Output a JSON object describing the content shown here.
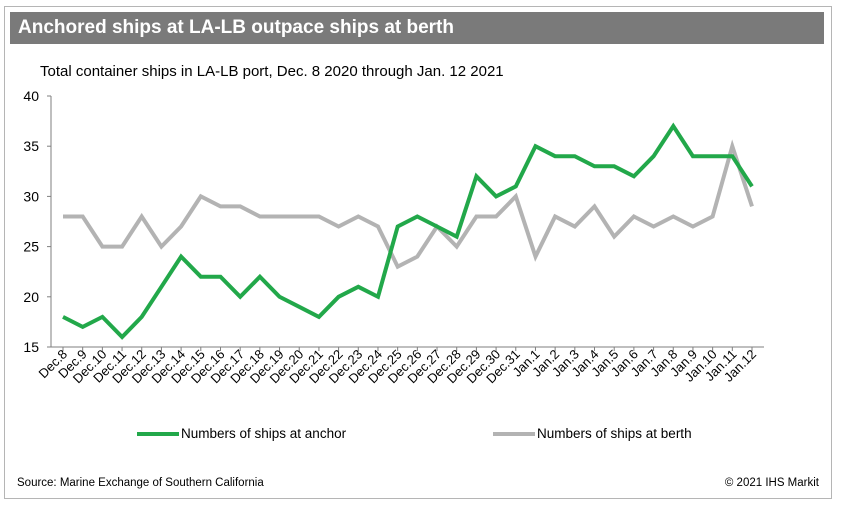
{
  "header": {
    "title": "Anchored ships at LA-LB outpace ships at berth"
  },
  "footer": {
    "source": "Source: Marine Exchange of Southern California",
    "copyright": "© 2021 IHS Markit"
  },
  "colors": {
    "title_bar": "#7a7a7a",
    "anchor": "#22a84a",
    "berth": "#b3b3b3"
  },
  "chart_data": {
    "type": "line",
    "title": "Total container ships in LA-LB port, Dec. 8 2020 through Jan. 12 2021",
    "xlabel": "",
    "ylabel": "",
    "ylim": [
      15,
      40
    ],
    "yticks": [
      15,
      20,
      25,
      30,
      35,
      40
    ],
    "grid": false,
    "legend_position": "bottom",
    "categories": [
      "Dec.8",
      "Dec.9",
      "Dec.10",
      "Dec.11",
      "Dec.12",
      "Dec.13",
      "Dec.14",
      "Dec.15",
      "Dec.16",
      "Dec.17",
      "Dec.18",
      "Dec.19",
      "Dec.20",
      "Dec.21",
      "Dec.22",
      "Dec.23",
      "Dec.24",
      "Dec.25",
      "Dec.26",
      "Dec.27",
      "Dec.28",
      "Dec.29",
      "Dec.30",
      "Dec.31",
      "Jan.1",
      "Jan.2",
      "Jan.3",
      "Jan.4",
      "Jan.5",
      "Jan.6",
      "Jan.7",
      "Jan.8",
      "Jan.9",
      "Jan.10",
      "Jan.11",
      "Jan.12"
    ],
    "series": [
      {
        "name": "Numbers of ships at anchor",
        "color": "#22a84a",
        "values": [
          18,
          17,
          18,
          16,
          18,
          21,
          24,
          22,
          22,
          20,
          22,
          20,
          19,
          18,
          20,
          21,
          20,
          27,
          28,
          27,
          26,
          32,
          30,
          31,
          35,
          34,
          34,
          33,
          33,
          32,
          34,
          37,
          34,
          34,
          34,
          31
        ]
      },
      {
        "name": "Numbers of ships at berth",
        "color": "#b3b3b3",
        "values": [
          28,
          28,
          25,
          25,
          28,
          25,
          27,
          30,
          29,
          29,
          28,
          28,
          28,
          28,
          27,
          28,
          27,
          23,
          24,
          27,
          25,
          28,
          28,
          30,
          24,
          28,
          27,
          29,
          26,
          28,
          27,
          28,
          27,
          28,
          35,
          29
        ]
      }
    ]
  }
}
